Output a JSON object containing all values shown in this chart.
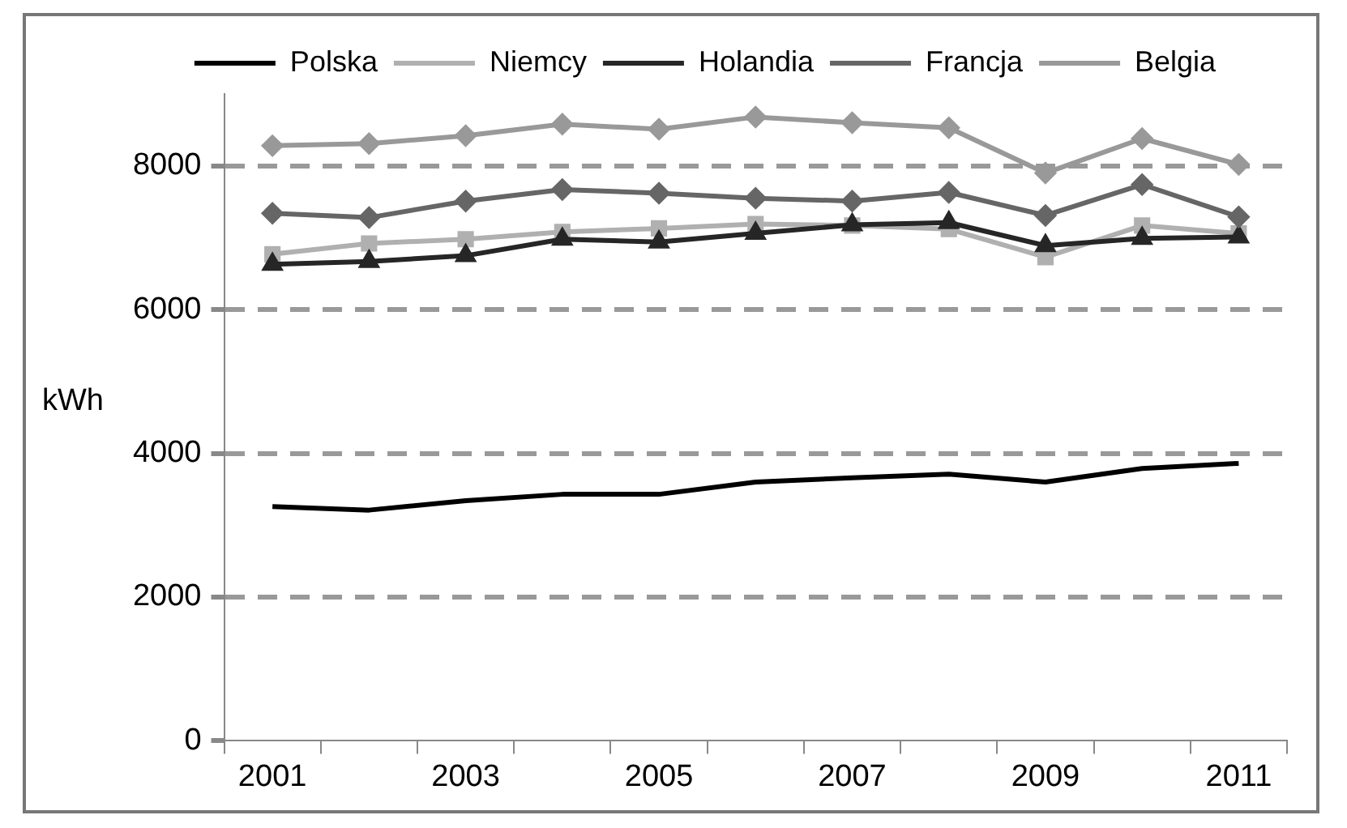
{
  "chart_data": {
    "type": "line",
    "ylabel": "kWh",
    "categories": [
      "2001",
      null,
      "2003",
      null,
      "2005",
      null,
      "2007",
      null,
      "2009",
      null,
      "2011"
    ],
    "ylim": [
      0,
      9000
    ],
    "yticks": [
      0,
      2000,
      4000,
      6000,
      8000
    ],
    "grid": "y",
    "legend": "top",
    "line_style": "solid",
    "series": [
      {
        "name": "Polska",
        "color": "#000000",
        "marker": "none",
        "values": [
          3260,
          3210,
          3340,
          3430,
          3430,
          3600,
          3660,
          3710,
          3600,
          3790,
          3860
        ]
      },
      {
        "name": "Niemcy",
        "color": "#b0b0b0",
        "marker": "square",
        "values": [
          6770,
          6920,
          6980,
          7080,
          7130,
          7190,
          7170,
          7120,
          6730,
          7170,
          7060
        ]
      },
      {
        "name": "Holandia",
        "color": "#262626",
        "marker": "triangle",
        "values": [
          6630,
          6670,
          6750,
          6980,
          6940,
          7060,
          7180,
          7210,
          6890,
          6990,
          7010
        ]
      },
      {
        "name": "Francja",
        "color": "#666666",
        "marker": "diamond",
        "values": [
          7340,
          7280,
          7510,
          7670,
          7620,
          7550,
          7510,
          7630,
          7310,
          7740,
          7290
        ]
      },
      {
        "name": "Belgia",
        "color": "#999999",
        "marker": "diamond",
        "values": [
          8280,
          8310,
          8420,
          8580,
          8510,
          8680,
          8600,
          8530,
          7900,
          8380,
          8020
        ]
      }
    ]
  }
}
